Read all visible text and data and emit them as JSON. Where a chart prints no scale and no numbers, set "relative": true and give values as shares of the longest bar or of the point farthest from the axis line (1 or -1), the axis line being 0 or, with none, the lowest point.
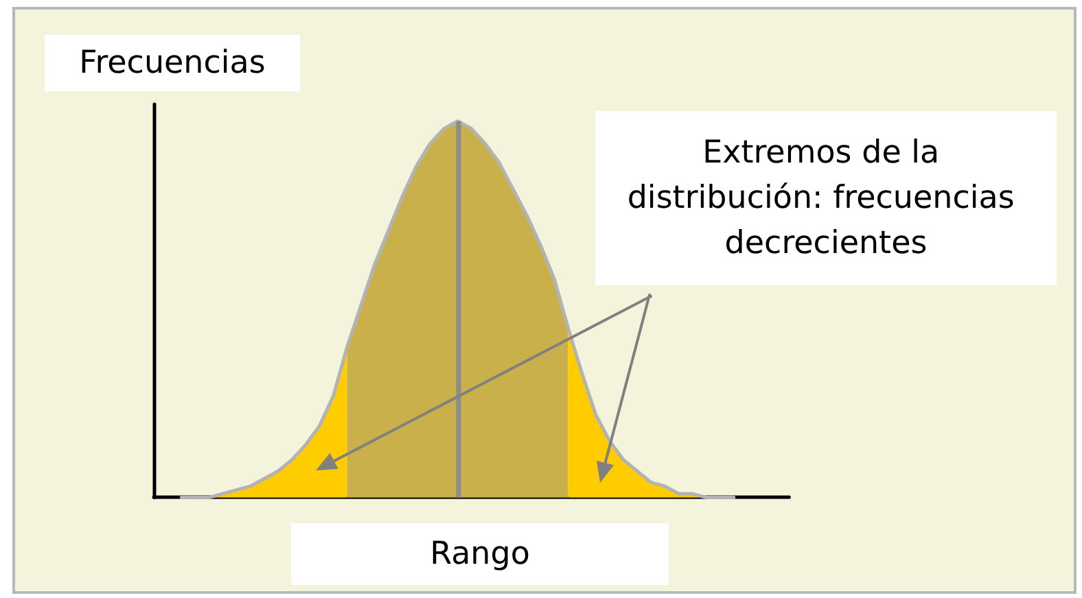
{
  "chart_data": {
    "type": "area",
    "xlabel": "Rango",
    "ylabel": "Frecuencias",
    "annotations": [
      "Extremos de la distribución: frecuencias decrecientes"
    ],
    "relative": true,
    "categories": [
      null,
      null,
      null,
      null,
      null,
      null,
      null,
      null,
      null,
      null,
      null,
      null,
      null,
      null,
      null,
      null,
      null,
      null,
      null,
      null,
      null,
      null,
      null,
      null,
      null,
      null,
      null,
      null,
      null,
      null,
      null,
      null,
      null,
      null,
      null,
      null,
      null,
      null,
      null,
      null,
      null,
      null,
      null,
      null,
      null,
      null,
      null
    ],
    "series": [
      {
        "color": "#ffcc00",
        "values": [
          null,
          null,
          0,
          0,
          0,
          0.01,
          0.02,
          0.03,
          0.05,
          0.07,
          0.1,
          0.14,
          0.19,
          0.27,
          0.4,
          null,
          null,
          null,
          null,
          null,
          null,
          null,
          null,
          null,
          null,
          null,
          null,
          null,
          null,
          null,
          null,
          null,
          null,
          null,
          null,
          null,
          null,
          null,
          null,
          null,
          null,
          null,
          null,
          null,
          null,
          null,
          null
        ]
      },
      {
        "color": "#c9b04b",
        "values": [
          null,
          null,
          null,
          null,
          null,
          null,
          null,
          null,
          null,
          null,
          null,
          null,
          null,
          null,
          0.4,
          0.51,
          0.62,
          0.71,
          0.8,
          0.88,
          0.94,
          0.98,
          1,
          0.98,
          0.94,
          0.89,
          0.82,
          0.75,
          0.67,
          0.58,
          0.45,
          null,
          null,
          null,
          null,
          null,
          null,
          null,
          null,
          null,
          null,
          null,
          null,
          null,
          null,
          null,
          null
        ]
      },
      {
        "color": "#ffcc00",
        "values": [
          null,
          null,
          null,
          null,
          null,
          null,
          null,
          null,
          null,
          null,
          null,
          null,
          null,
          null,
          null,
          null,
          null,
          null,
          null,
          null,
          null,
          null,
          null,
          null,
          null,
          null,
          null,
          null,
          null,
          null,
          0.45,
          0.33,
          0.22,
          0.15,
          0.1,
          0.07,
          0.04,
          0.03,
          0.01,
          0.01,
          0,
          0,
          0,
          null,
          null,
          null,
          null
        ]
      }
    ]
  }
}
